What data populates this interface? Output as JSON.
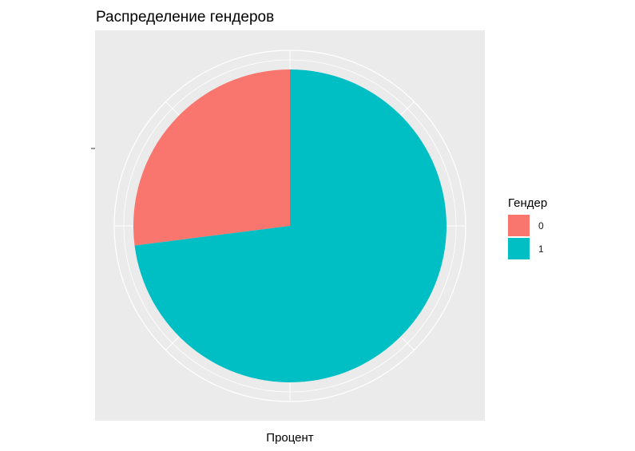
{
  "chart_data": {
    "type": "pie",
    "title": "Распределение гендеров",
    "xlabel": "Процент",
    "ylabel": "",
    "legend": {
      "title": "Гендер",
      "position": "right"
    },
    "slices": [
      {
        "label": "0",
        "value": 0.27,
        "color": "#F8766D"
      },
      {
        "label": "1",
        "value": 0.73,
        "color": "#00BFC4"
      }
    ],
    "panel_background": "#EBEBEB",
    "grid_color": "#FFFFFF",
    "grid": true,
    "start": "12 o'clock",
    "direction": "counterclockwise"
  }
}
